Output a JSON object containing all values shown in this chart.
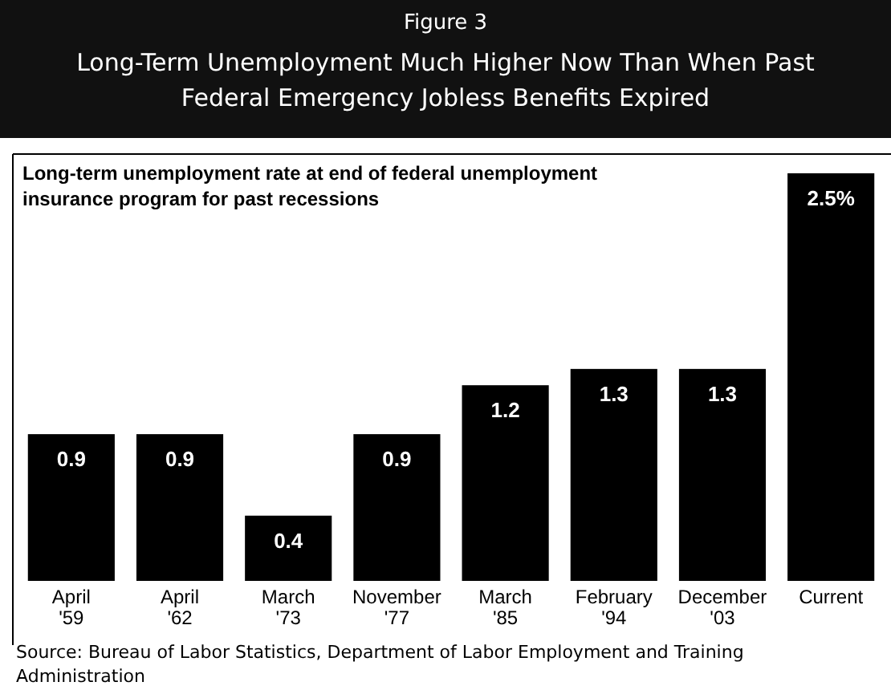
{
  "chart_data": {
    "type": "bar",
    "title": "Figure 3",
    "subtitle": "Long-Term Unemployment Much Higher Now Than When Past Federal Emergency Jobless Benefits Expired",
    "ylabel": "Long-term unemployment rate at end of federal unemployment insurance program for past recessions",
    "categories": [
      "April '59",
      "April '62",
      "March '73",
      "November '77",
      "March '85",
      "February '94",
      "December '03",
      "Current"
    ],
    "values": [
      0.9,
      0.9,
      0.4,
      0.9,
      1.2,
      1.3,
      1.3,
      2.5
    ],
    "value_labels": [
      "0.9",
      "0.9",
      "0.4",
      "0.9",
      "1.2",
      "1.3",
      "1.3",
      "2.5%"
    ],
    "color": "#000000",
    "ylim": [
      0,
      2.5
    ],
    "annotations": [
      "Source: Bureau of Labor Statistics, Department of Labor Employment and Training Administration"
    ]
  }
}
